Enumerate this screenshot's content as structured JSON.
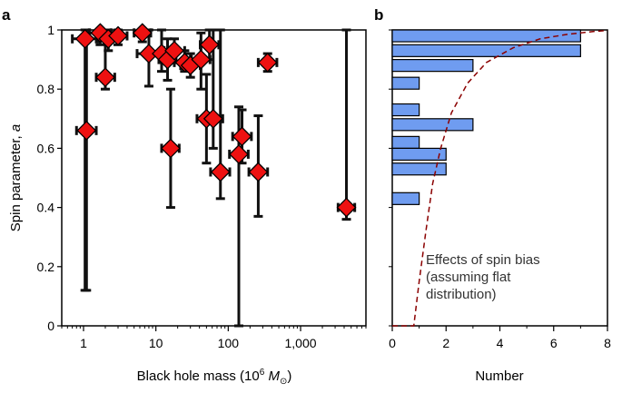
{
  "chart_data": [
    {
      "panel": "a",
      "type": "scatter",
      "xlabel": "Black hole mass (10",
      "xlabel_sup": "6",
      "xlabel_unit": " M",
      "xlabel_sub": "⊙",
      "xlabel_close": ")",
      "ylabel": "Spin parameter,",
      "ylabel_var": "a",
      "xscale": "log",
      "xlim": [
        0.5,
        8000
      ],
      "ylim": [
        0,
        1
      ],
      "xticks": [
        1,
        10,
        100,
        1000
      ],
      "xtick_labels": [
        "1",
        "10",
        "100",
        "1,000"
      ],
      "yticks": [
        0,
        0.2,
        0.4,
        0.6,
        0.8,
        1
      ],
      "ytick_labels": [
        "0",
        "0.2",
        "0.4",
        "0.6",
        "0.8",
        "1"
      ],
      "marker_color": "#ee1111",
      "points": [
        {
          "x": 1.05,
          "y": 0.97,
          "xlo": 0.7,
          "xhi": 1.5,
          "ylo": 0.12,
          "yhi": 1.0
        },
        {
          "x": 1.1,
          "y": 0.66,
          "xlo": 0.8,
          "xhi": 1.5,
          "ylo": 0.12,
          "yhi": 1.0
        },
        {
          "x": 1.7,
          "y": 0.99,
          "xlo": 1.2,
          "xhi": 2.4,
          "ylo": 0.95,
          "yhi": 1.0
        },
        {
          "x": 2.0,
          "y": 0.84,
          "xlo": 1.5,
          "xhi": 2.7,
          "ylo": 0.8,
          "yhi": 1.0
        },
        {
          "x": 2.2,
          "y": 0.97,
          "xlo": 1.6,
          "xhi": 3.0,
          "ylo": 0.93,
          "yhi": 1.0
        },
        {
          "x": 3.0,
          "y": 0.98,
          "xlo": 2.2,
          "xhi": 4.0,
          "ylo": 0.95,
          "yhi": 1.0
        },
        {
          "x": 6.5,
          "y": 0.99,
          "xlo": 5.0,
          "xhi": 8.5,
          "ylo": 0.96,
          "yhi": 1.0
        },
        {
          "x": 8.0,
          "y": 0.92,
          "xlo": 5.5,
          "xhi": 11.5,
          "ylo": 0.81,
          "yhi": 1.0
        },
        {
          "x": 12.0,
          "y": 0.92,
          "xlo": 9.0,
          "xhi": 16.0,
          "ylo": 0.86,
          "yhi": 1.0
        },
        {
          "x": 14.5,
          "y": 0.9,
          "xlo": 11.0,
          "xhi": 19.0,
          "ylo": 0.83,
          "yhi": 0.97
        },
        {
          "x": 16.0,
          "y": 0.6,
          "xlo": 12.0,
          "xhi": 21.0,
          "ylo": 0.4,
          "yhi": 0.8
        },
        {
          "x": 18.0,
          "y": 0.93,
          "xlo": 13.0,
          "xhi": 25.0,
          "ylo": 0.89,
          "yhi": 0.97
        },
        {
          "x": 25.0,
          "y": 0.89,
          "xlo": 18.0,
          "xhi": 34.0,
          "ylo": 0.86,
          "yhi": 0.93
        },
        {
          "x": 30.0,
          "y": 0.88,
          "xlo": 22.0,
          "xhi": 41.0,
          "ylo": 0.84,
          "yhi": 0.92
        },
        {
          "x": 42.0,
          "y": 0.9,
          "xlo": 31.0,
          "xhi": 56.0,
          "ylo": 0.8,
          "yhi": 0.99
        },
        {
          "x": 50.0,
          "y": 0.7,
          "xlo": 37.0,
          "xhi": 68.0,
          "ylo": 0.55,
          "yhi": 0.85
        },
        {
          "x": 55.0,
          "y": 0.95,
          "xlo": 41.0,
          "xhi": 74.0,
          "ylo": 0.9,
          "yhi": 1.0
        },
        {
          "x": 62.0,
          "y": 0.7,
          "xlo": 46.0,
          "xhi": 84.0,
          "ylo": 0.6,
          "yhi": 1.0
        },
        {
          "x": 78.0,
          "y": 0.52,
          "xlo": 57.0,
          "xhi": 105.0,
          "ylo": 0.43,
          "yhi": 1.0
        },
        {
          "x": 140.0,
          "y": 0.58,
          "xlo": 104.0,
          "xhi": 189.0,
          "ylo": 0.0,
          "yhi": 0.74
        },
        {
          "x": 155.0,
          "y": 0.64,
          "xlo": 115.0,
          "xhi": 209.0,
          "ylo": 0.55,
          "yhi": 0.73
        },
        {
          "x": 260.0,
          "y": 0.52,
          "xlo": 193.0,
          "xhi": 350.0,
          "ylo": 0.37,
          "yhi": 0.71
        },
        {
          "x": 350.0,
          "y": 0.89,
          "xlo": 260.0,
          "xhi": 470.0,
          "ylo": 0.86,
          "yhi": 0.92
        },
        {
          "x": 4300.0,
          "y": 0.4,
          "xlo": 3300.0,
          "xhi": 5600.0,
          "ylo": 0.36,
          "yhi": 1.0
        }
      ]
    },
    {
      "panel": "b",
      "type": "bar",
      "orientation": "horizontal",
      "xlabel": "Number",
      "xlim": [
        0,
        8
      ],
      "ylim": [
        0,
        1
      ],
      "xticks": [
        0,
        2,
        4,
        6,
        8
      ],
      "xtick_labels": [
        "0",
        "2",
        "4",
        "6",
        "8"
      ],
      "bar_color": "#6f9cf0",
      "bins": [
        {
          "y0": 0.96,
          "y1": 1.0,
          "value": 7
        },
        {
          "y0": 0.91,
          "y1": 0.95,
          "value": 7
        },
        {
          "y0": 0.86,
          "y1": 0.9,
          "value": 3
        },
        {
          "y0": 0.8,
          "y1": 0.84,
          "value": 1
        },
        {
          "y0": 0.71,
          "y1": 0.75,
          "value": 1
        },
        {
          "y0": 0.66,
          "y1": 0.7,
          "value": 3
        },
        {
          "y0": 0.6,
          "y1": 0.64,
          "value": 1
        },
        {
          "y0": 0.56,
          "y1": 0.6,
          "value": 2
        },
        {
          "y0": 0.51,
          "y1": 0.55,
          "value": 2
        },
        {
          "y0": 0.41,
          "y1": 0.45,
          "value": 1
        }
      ],
      "curve": {
        "description": "Effects of spin bias (assuming flat distribution)",
        "color": "#8b0000",
        "style": "dashed",
        "points": [
          [
            0.8,
            0
          ],
          [
            1.0,
            0.15
          ],
          [
            1.25,
            0.32
          ],
          [
            1.5,
            0.48
          ],
          [
            1.8,
            0.6
          ],
          [
            2.2,
            0.72
          ],
          [
            2.8,
            0.82
          ],
          [
            3.5,
            0.89
          ],
          [
            4.5,
            0.94
          ],
          [
            5.5,
            0.97
          ],
          [
            6.5,
            0.985
          ],
          [
            7.5,
            0.995
          ],
          [
            8.0,
            0.998
          ]
        ]
      },
      "annotation": [
        "Effects of spin bias",
        "(assuming flat",
        "distribution)"
      ]
    }
  ]
}
